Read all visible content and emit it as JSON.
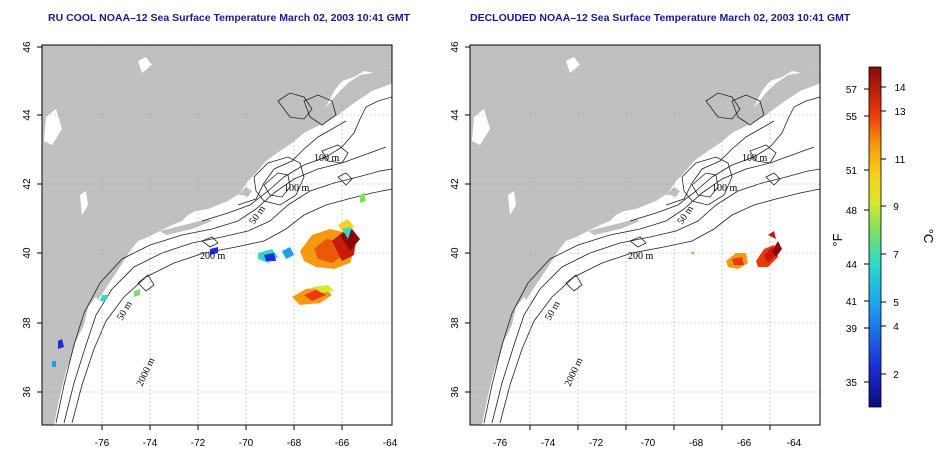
{
  "panels": [
    {
      "title": "RU COOL NOAA–12 Sea Surface Temperature March 02, 2003 10:41 GMT",
      "contour_labels": [
        "100 m",
        "100 m",
        "50 m",
        "200 m",
        "50 m",
        "2000 m"
      ]
    },
    {
      "title": "DECLOUDED NOAA–12 Sea Surface Temperature March 02, 2003 10:41 GMT",
      "contour_labels": [
        "100 m",
        "100 m",
        "50 m",
        "200 m",
        "50 m",
        "2000 m"
      ]
    }
  ],
  "axes": {
    "lon_ticks": [
      "-76",
      "-74",
      "-72",
      "-70",
      "-68",
      "-66",
      "-64"
    ],
    "lat_ticks": [
      "46",
      "44",
      "42",
      "40",
      "38",
      "36"
    ]
  },
  "colorbar": {
    "f_label": "°F",
    "c_label": "°C",
    "f_ticks": [
      "57",
      "55",
      "51",
      "48",
      "44",
      "41",
      "39",
      "35"
    ],
    "c_ticks": [
      "14",
      "13",
      "11",
      "9",
      "7",
      "5",
      "4",
      "2"
    ]
  },
  "colors": {
    "land": "#c0c0c0",
    "title": "#1a1a8c",
    "grid": "#999999",
    "cold": "#0a0a8c",
    "warm": "#8c0a0a"
  }
}
